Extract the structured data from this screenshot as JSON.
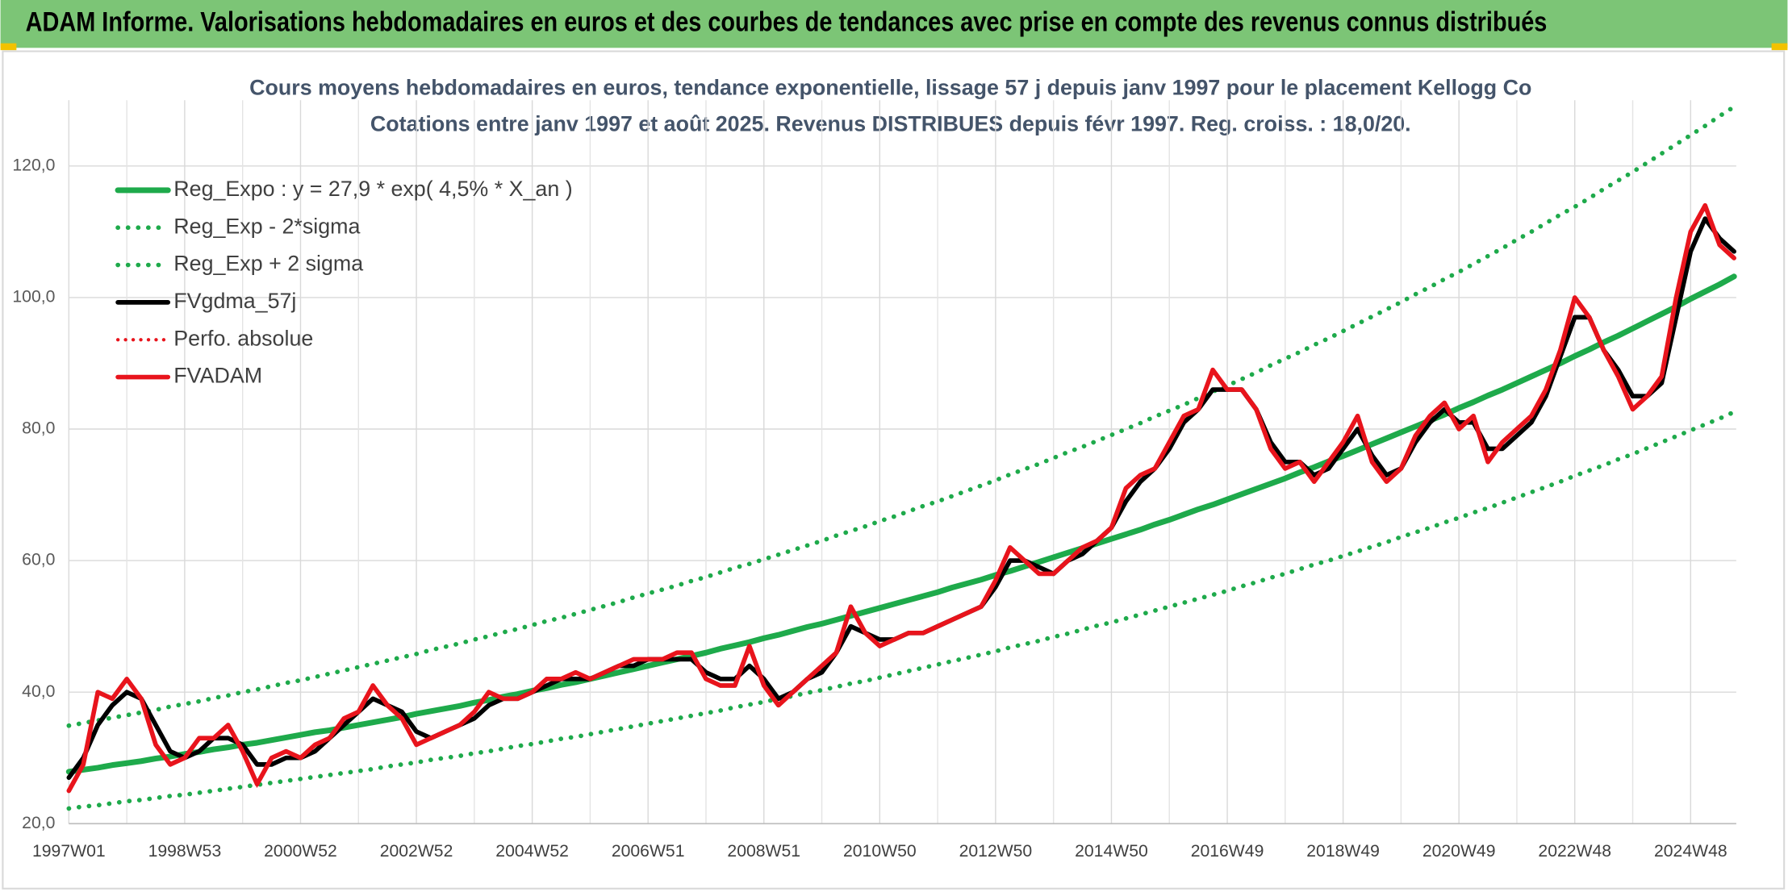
{
  "chart_data": {
    "type": "line",
    "title": "ADAM Informe. Valorisations hebdomadaires en euros et des courbes de tendances avec prise en compte des revenus connus distribués",
    "subtitle": [
      "Cours moyens hebdomadaires en euros, tendance exponentielle, lissage 57 j depuis janv 1997 pour le placement Kellogg Co",
      "Cotations entre janv 1997 et août 2025. Revenus DISTRIBUES depuis févr 1997. Reg. croiss. : 18,0/20."
    ],
    "categories": [
      "1997W01",
      null,
      null,
      null,
      null,
      null,
      null,
      null,
      "1998W53",
      null,
      null,
      null,
      null,
      null,
      null,
      null,
      "2000W52",
      null,
      null,
      null,
      null,
      null,
      null,
      null,
      "2002W52",
      null,
      null,
      null,
      null,
      null,
      null,
      null,
      "2004W52",
      null,
      null,
      null,
      null,
      null,
      null,
      null,
      "2006W51",
      null,
      null,
      null,
      null,
      null,
      null,
      null,
      "2008W51",
      null,
      null,
      null,
      null,
      null,
      null,
      null,
      "2010W50",
      null,
      null,
      null,
      null,
      null,
      null,
      null,
      "2012W50",
      null,
      null,
      null,
      null,
      null,
      null,
      null,
      "2014W50",
      null,
      null,
      null,
      null,
      null,
      null,
      null,
      "2016W49",
      null,
      null,
      null,
      null,
      null,
      null,
      null,
      "2018W49",
      null,
      null,
      null,
      null,
      null,
      null,
      null,
      "2020W49",
      null,
      null,
      null,
      null,
      null,
      null,
      null,
      "2022W48",
      null,
      null,
      null,
      null,
      null,
      null,
      null,
      "2024W48",
      null,
      null,
      null
    ],
    "ylim": [
      20,
      130
    ],
    "yticks": [
      {
        "value": 20,
        "label": "20,0"
      },
      {
        "value": 40,
        "label": "40,0"
      },
      {
        "value": 60,
        "label": "60,0"
      },
      {
        "value": 80,
        "label": "80,0"
      },
      {
        "value": 100,
        "label": "100,0"
      },
      {
        "value": 120,
        "label": "120,0"
      }
    ],
    "grid": true,
    "legend": "top-left",
    "series": [
      {
        "name": "Reg_Expo : y = 27,9 * exp( 4,5% *  X_an )",
        "color": "#1eaa4b",
        "style": "solid",
        "width": 5,
        "values": [
          27.9,
          28.2,
          28.5,
          28.9,
          29.2,
          29.5,
          29.9,
          30.2,
          30.6,
          30.9,
          31.3,
          31.6,
          32.0,
          32.3,
          32.7,
          33.1,
          33.5,
          33.9,
          34.2,
          34.6,
          35.0,
          35.4,
          35.8,
          36.2,
          36.7,
          37.1,
          37.5,
          37.9,
          38.4,
          38.8,
          39.3,
          39.7,
          40.2,
          40.6,
          41.1,
          41.5,
          42.0,
          42.5,
          43.0,
          43.5,
          44.0,
          44.5,
          45.0,
          45.5,
          46.0,
          46.6,
          47.1,
          47.6,
          48.2,
          48.7,
          49.3,
          49.9,
          50.4,
          51.0,
          51.6,
          52.2,
          52.8,
          53.4,
          54.0,
          54.6,
          55.2,
          55.9,
          56.5,
          57.1,
          57.8,
          58.4,
          59.1,
          59.8,
          60.5,
          61.2,
          61.9,
          62.6,
          63.3,
          64.0,
          64.7,
          65.5,
          66.2,
          67.0,
          67.8,
          68.5,
          69.3,
          70.1,
          70.9,
          71.7,
          72.5,
          73.4,
          74.2,
          75.1,
          75.9,
          76.8,
          77.7,
          78.6,
          79.5,
          80.4,
          81.3,
          82.2,
          83.2,
          84.1,
          85.1,
          86.0,
          87.0,
          88.0,
          89.0,
          90.0,
          91.1,
          92.1,
          93.2,
          94.2,
          95.3,
          96.4,
          97.5,
          98.6,
          99.8,
          100.9,
          102.0,
          103.2
        ]
      },
      {
        "name": "Reg_Exp - 2*sigma",
        "color": "#1eaa4b",
        "style": "dotted",
        "width": 4,
        "values": [
          22.3,
          22.6,
          22.8,
          23.1,
          23.4,
          23.6,
          23.9,
          24.2,
          24.4,
          24.7,
          25.0,
          25.3,
          25.6,
          25.9,
          26.2,
          26.5,
          26.8,
          27.1,
          27.4,
          27.7,
          28.0,
          28.3,
          28.7,
          29.0,
          29.3,
          29.7,
          30.0,
          30.3,
          30.7,
          31.0,
          31.4,
          31.8,
          32.1,
          32.5,
          32.9,
          33.2,
          33.6,
          34.0,
          34.4,
          34.8,
          35.2,
          35.6,
          36.0,
          36.4,
          36.8,
          37.2,
          37.7,
          38.1,
          38.5,
          39.0,
          39.4,
          39.9,
          40.3,
          40.8,
          41.3,
          41.7,
          42.2,
          42.7,
          43.2,
          43.7,
          44.2,
          44.7,
          45.2,
          45.7,
          46.2,
          46.8,
          47.3,
          47.8,
          48.4,
          48.9,
          49.5,
          50.1,
          50.6,
          51.2,
          51.8,
          52.4,
          53.0,
          53.6,
          54.2,
          54.8,
          55.4,
          56.1,
          56.7,
          57.4,
          58.0,
          58.7,
          59.4,
          60.0,
          60.7,
          61.4,
          62.1,
          62.8,
          63.6,
          64.3,
          65.0,
          65.8,
          66.5,
          67.3,
          68.0,
          68.8,
          69.6,
          70.4,
          71.2,
          72.0,
          72.9,
          73.7,
          74.5,
          75.4,
          76.2,
          77.1,
          78.0,
          78.9,
          79.8,
          80.7,
          81.6,
          82.6
        ]
      },
      {
        "name": "Reg_Exp + 2 sigma",
        "color": "#1eaa4b",
        "style": "dotted",
        "width": 4,
        "values": [
          34.9,
          35.3,
          35.7,
          36.1,
          36.5,
          36.9,
          37.3,
          37.8,
          38.2,
          38.6,
          39.1,
          39.5,
          40.0,
          40.4,
          40.9,
          41.4,
          41.8,
          42.3,
          42.8,
          43.3,
          43.8,
          44.3,
          44.8,
          45.3,
          45.8,
          46.4,
          46.9,
          47.4,
          48.0,
          48.5,
          49.1,
          49.6,
          50.2,
          50.8,
          51.3,
          51.9,
          52.5,
          53.1,
          53.7,
          54.4,
          55.0,
          55.6,
          56.2,
          56.9,
          57.5,
          58.2,
          58.9,
          59.5,
          60.2,
          60.9,
          61.6,
          62.3,
          63.0,
          63.8,
          64.5,
          65.2,
          66.0,
          66.7,
          67.5,
          68.3,
          69.0,
          69.8,
          70.6,
          71.4,
          72.2,
          73.1,
          73.9,
          74.7,
          75.6,
          76.5,
          77.3,
          78.2,
          79.1,
          80.0,
          80.9,
          81.9,
          82.8,
          83.7,
          84.7,
          85.7,
          86.6,
          87.6,
          88.6,
          89.7,
          90.7,
          91.7,
          92.8,
          93.8,
          94.9,
          96.0,
          97.1,
          98.2,
          99.3,
          100.5,
          101.6,
          102.8,
          103.9,
          105.1,
          106.3,
          107.5,
          108.8,
          110.0,
          111.3,
          112.6,
          113.8,
          115.1,
          116.5,
          117.8,
          119.1,
          120.5,
          121.9,
          123.3,
          124.7,
          126.1,
          127.6,
          129.0
        ]
      },
      {
        "name": "FVgdma_57j",
        "color": "#000000",
        "style": "solid",
        "width": 4,
        "values": [
          27,
          30,
          35,
          38,
          40,
          39,
          35,
          31,
          30,
          31,
          33,
          33,
          32,
          29,
          29,
          30,
          30,
          31,
          33,
          35,
          37,
          39,
          38,
          37,
          34,
          33,
          34,
          35,
          36,
          38,
          39,
          39,
          40,
          41,
          42,
          42,
          42,
          43,
          44,
          44,
          45,
          45,
          45,
          45,
          43,
          42,
          42,
          44,
          42,
          39,
          40,
          42,
          43,
          46,
          50,
          49,
          48,
          48,
          49,
          49,
          50,
          51,
          52,
          53,
          56,
          60,
          60,
          59,
          58,
          60,
          61,
          63,
          65,
          69,
          72,
          74,
          77,
          81,
          83,
          86,
          86,
          86,
          83,
          78,
          75,
          75,
          73,
          74,
          77,
          80,
          76,
          73,
          74,
          78,
          81,
          83,
          81,
          81,
          77,
          77,
          79,
          81,
          85,
          91,
          97,
          97,
          92,
          89,
          85,
          85,
          87,
          97,
          107,
          112,
          109,
          107
        ]
      },
      {
        "name": "Perfo. absolue",
        "color": "#e8141c",
        "style": "dotted",
        "width": 3,
        "values": [
          25,
          29,
          40,
          39,
          42,
          39,
          32,
          29,
          30,
          33,
          33,
          35,
          31,
          26,
          30,
          31,
          30,
          32,
          33,
          36,
          37,
          41,
          38,
          36,
          32,
          33,
          34,
          35,
          37,
          40,
          39,
          39,
          40,
          42,
          42,
          43,
          42,
          43,
          44,
          45,
          45,
          45,
          46,
          46,
          42,
          41,
          41,
          47,
          41,
          38,
          40,
          42,
          44,
          46,
          53,
          49,
          47,
          48,
          49,
          49,
          50,
          51,
          52,
          53,
          57,
          62,
          60,
          58,
          58,
          60,
          62,
          63,
          65,
          71,
          73,
          74,
          78,
          82,
          83,
          89,
          86,
          86,
          83,
          77,
          74,
          75,
          72,
          75,
          78,
          82,
          75,
          72,
          74,
          79,
          82,
          84,
          80,
          82,
          75,
          78,
          80,
          82,
          86,
          92,
          100,
          97,
          92,
          88,
          83,
          85,
          88,
          100,
          110,
          114,
          108,
          106
        ]
      },
      {
        "name": "FVADAM",
        "color": "#e8141c",
        "style": "solid",
        "width": 4,
        "values": [
          25,
          29,
          40,
          39,
          42,
          39,
          32,
          29,
          30,
          33,
          33,
          35,
          31,
          26,
          30,
          31,
          30,
          32,
          33,
          36,
          37,
          41,
          38,
          36,
          32,
          33,
          34,
          35,
          37,
          40,
          39,
          39,
          40,
          42,
          42,
          43,
          42,
          43,
          44,
          45,
          45,
          45,
          46,
          46,
          42,
          41,
          41,
          47,
          41,
          38,
          40,
          42,
          44,
          46,
          53,
          49,
          47,
          48,
          49,
          49,
          50,
          51,
          52,
          53,
          57,
          62,
          60,
          58,
          58,
          60,
          62,
          63,
          65,
          71,
          73,
          74,
          78,
          82,
          83,
          89,
          86,
          86,
          83,
          77,
          74,
          75,
          72,
          75,
          78,
          82,
          75,
          72,
          74,
          79,
          82,
          84,
          80,
          82,
          75,
          78,
          80,
          82,
          86,
          92,
          100,
          97,
          92,
          88,
          83,
          85,
          88,
          100,
          110,
          114,
          108,
          106
        ]
      }
    ]
  }
}
